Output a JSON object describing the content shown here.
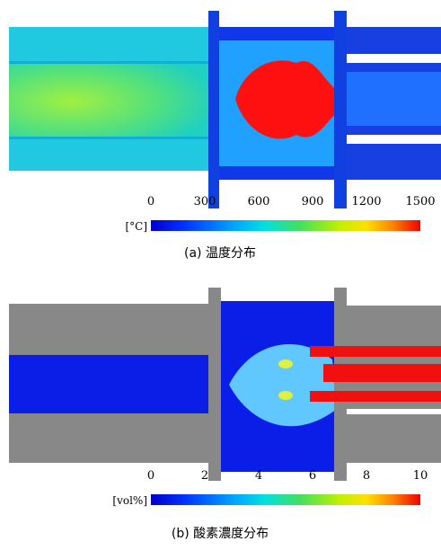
{
  "panels": [
    {
      "ticks": [
        0,
        300,
        600,
        900,
        1200,
        1500
      ],
      "unit": "[°C]",
      "caption": "(a) 温度分布"
    },
    {
      "ticks": [
        0,
        2,
        4,
        6,
        8,
        10
      ],
      "unit": "[vol%]",
      "caption": "(b) 酸素濃度分布"
    }
  ]
}
